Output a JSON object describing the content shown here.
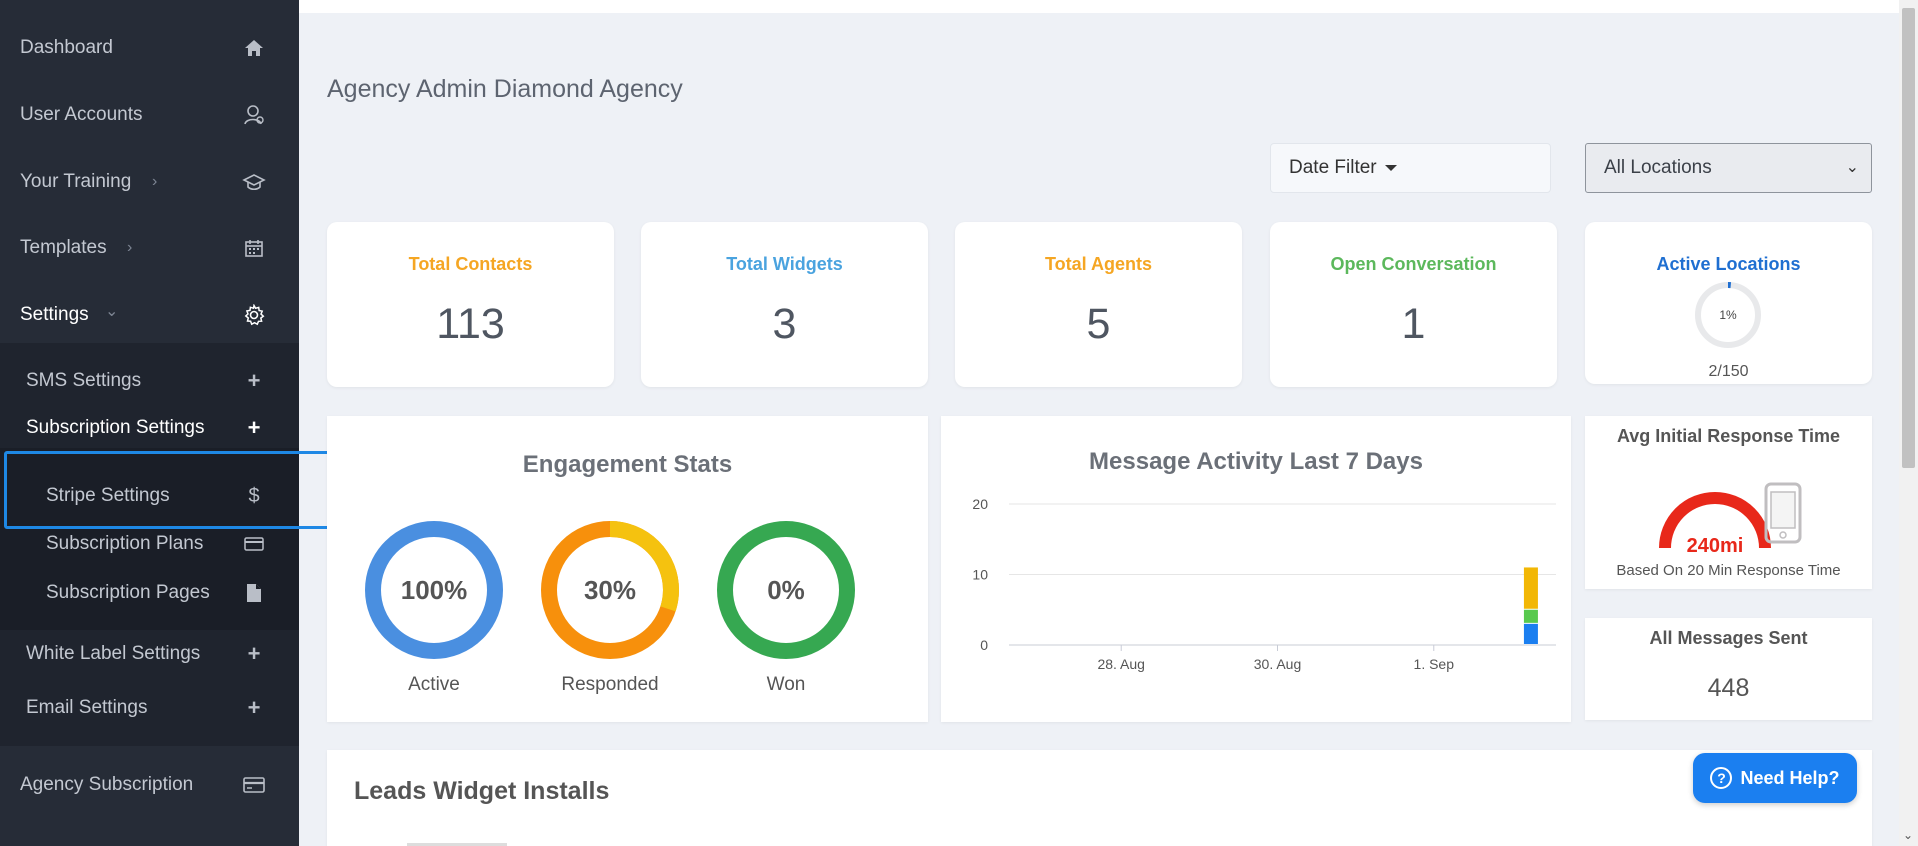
{
  "sidebar": {
    "items": [
      {
        "label": "Dashboard",
        "icon": "home-icon"
      },
      {
        "label": "User Accounts",
        "icon": "user-icon"
      },
      {
        "label": "Your Training",
        "icon": "graduation-cap-icon",
        "chevron": "›"
      },
      {
        "label": "Templates",
        "icon": "calendar-icon",
        "chevron": "›"
      },
      {
        "label": "Settings",
        "icon": "gear-icon",
        "chevron": "⌄"
      }
    ],
    "settings_sub": [
      {
        "label": "SMS Settings",
        "icon": "+"
      },
      {
        "label": "Subscription Settings",
        "icon": "+"
      }
    ],
    "subscription_sub": [
      {
        "label": "Stripe Settings",
        "icon": "$"
      },
      {
        "label": "Subscription Plans",
        "icon": "card-icon"
      },
      {
        "label": "Subscription Pages",
        "icon": "file-icon"
      }
    ],
    "settings_sub2": [
      {
        "label": "White Label Settings",
        "icon": "+"
      },
      {
        "label": "Email Settings",
        "icon": "+"
      }
    ],
    "agency_subscription": {
      "label": "Agency Subscription",
      "icon": "card-icon"
    }
  },
  "header": {
    "title": "Agency Admin Diamond Agency",
    "date_filter": "Date Filter",
    "location_select": "All Locations"
  },
  "stats": [
    {
      "title": "Total Contacts",
      "value": "113",
      "color": "#f5a623"
    },
    {
      "title": "Total Widgets",
      "value": "3",
      "color": "#4aa3df"
    },
    {
      "title": "Total Agents",
      "value": "5",
      "color": "#f5a623"
    },
    {
      "title": "Open Conversation",
      "value": "1",
      "color": "#5cb85c"
    }
  ],
  "active_locations": {
    "title": "Active Locations",
    "percent_label": "1%",
    "percent": 1,
    "count": "2/150",
    "color": "#1f6fd1"
  },
  "engagement": {
    "title": "Engagement Stats",
    "donuts": [
      {
        "label": "Active",
        "value_label": "100%",
        "percent": 100,
        "color": "#4a8fe0"
      },
      {
        "label": "Responded",
        "value_label": "30%",
        "percent": 30,
        "color": "#f5c20f",
        "base_color": "#f7900c"
      },
      {
        "label": "Won",
        "value_label": "0%",
        "percent": 0,
        "color": "#36a851"
      }
    ]
  },
  "chart_data": {
    "type": "bar",
    "title": "Message Activity Last 7 Days",
    "x_tick_labels": [
      "28. Aug",
      "30. Aug",
      "1. Sep"
    ],
    "y_ticks": [
      0,
      10,
      20
    ],
    "ylim": [
      0,
      20
    ],
    "categories": [
      "Aug 27",
      "Aug 28",
      "Aug 29",
      "Aug 30",
      "Aug 31",
      "Sep 1",
      "Sep 2"
    ],
    "series": [
      {
        "name": "blue",
        "color": "#1b7ff0",
        "values": [
          0,
          0,
          0,
          0,
          0,
          0,
          3
        ]
      },
      {
        "name": "green",
        "color": "#58c94e",
        "values": [
          0,
          0,
          0,
          0,
          0,
          0,
          2
        ]
      },
      {
        "name": "yellow",
        "color": "#f2b705",
        "values": [
          0,
          0,
          0,
          0,
          0,
          0,
          6
        ]
      }
    ]
  },
  "response_time": {
    "title": "Avg Initial Response Time",
    "value": "240mi",
    "caption": "Based On 20 Min Response Time",
    "color": "#e8281a"
  },
  "messages_sent": {
    "title": "All Messages Sent",
    "value": "448"
  },
  "leads_widget": {
    "title": "Leads Widget Installs"
  },
  "help": {
    "label": "Need Help?",
    "q": "?"
  }
}
